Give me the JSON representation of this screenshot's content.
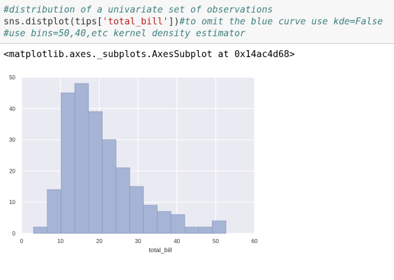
{
  "cell": {
    "line1": "#distribution of a univariate set of observations",
    "line2_code_a": "sns.distplot(tips[",
    "line2_string": "'total_bill'",
    "line2_code_b": "])",
    "line2_comment": "#to omit the blue curve use kde=False",
    "line3": "#use bins=50,40,etc kernel density estimator"
  },
  "output": {
    "text": "<matplotlib.axes._subplots.AxesSubplot at 0x14ac4d68>"
  },
  "chart_data": {
    "type": "bar",
    "title": "",
    "xlabel": "total_bill",
    "ylabel": "",
    "xlim": [
      0,
      60
    ],
    "ylim": [
      0,
      50
    ],
    "xticks": [
      0,
      10,
      20,
      30,
      40,
      50,
      60
    ],
    "yticks": [
      0,
      10,
      20,
      30,
      40,
      50
    ],
    "grid": true,
    "bin_edges": [
      3.07,
      6.61,
      10.15,
      13.69,
      17.23,
      20.77,
      24.31,
      27.85,
      31.39,
      34.93,
      38.47,
      42.01,
      45.55,
      49.09,
      52.63
    ],
    "values": [
      2,
      14,
      45,
      48,
      39,
      30,
      21,
      15,
      9,
      7,
      6,
      2,
      2,
      4
    ],
    "colors": {
      "bar_fill": "#a6b5d5",
      "bar_stroke": "#8d9dc2",
      "plot_bg": "#eaeaf2",
      "grid": "#ffffff",
      "tick_text": "#333333"
    }
  }
}
